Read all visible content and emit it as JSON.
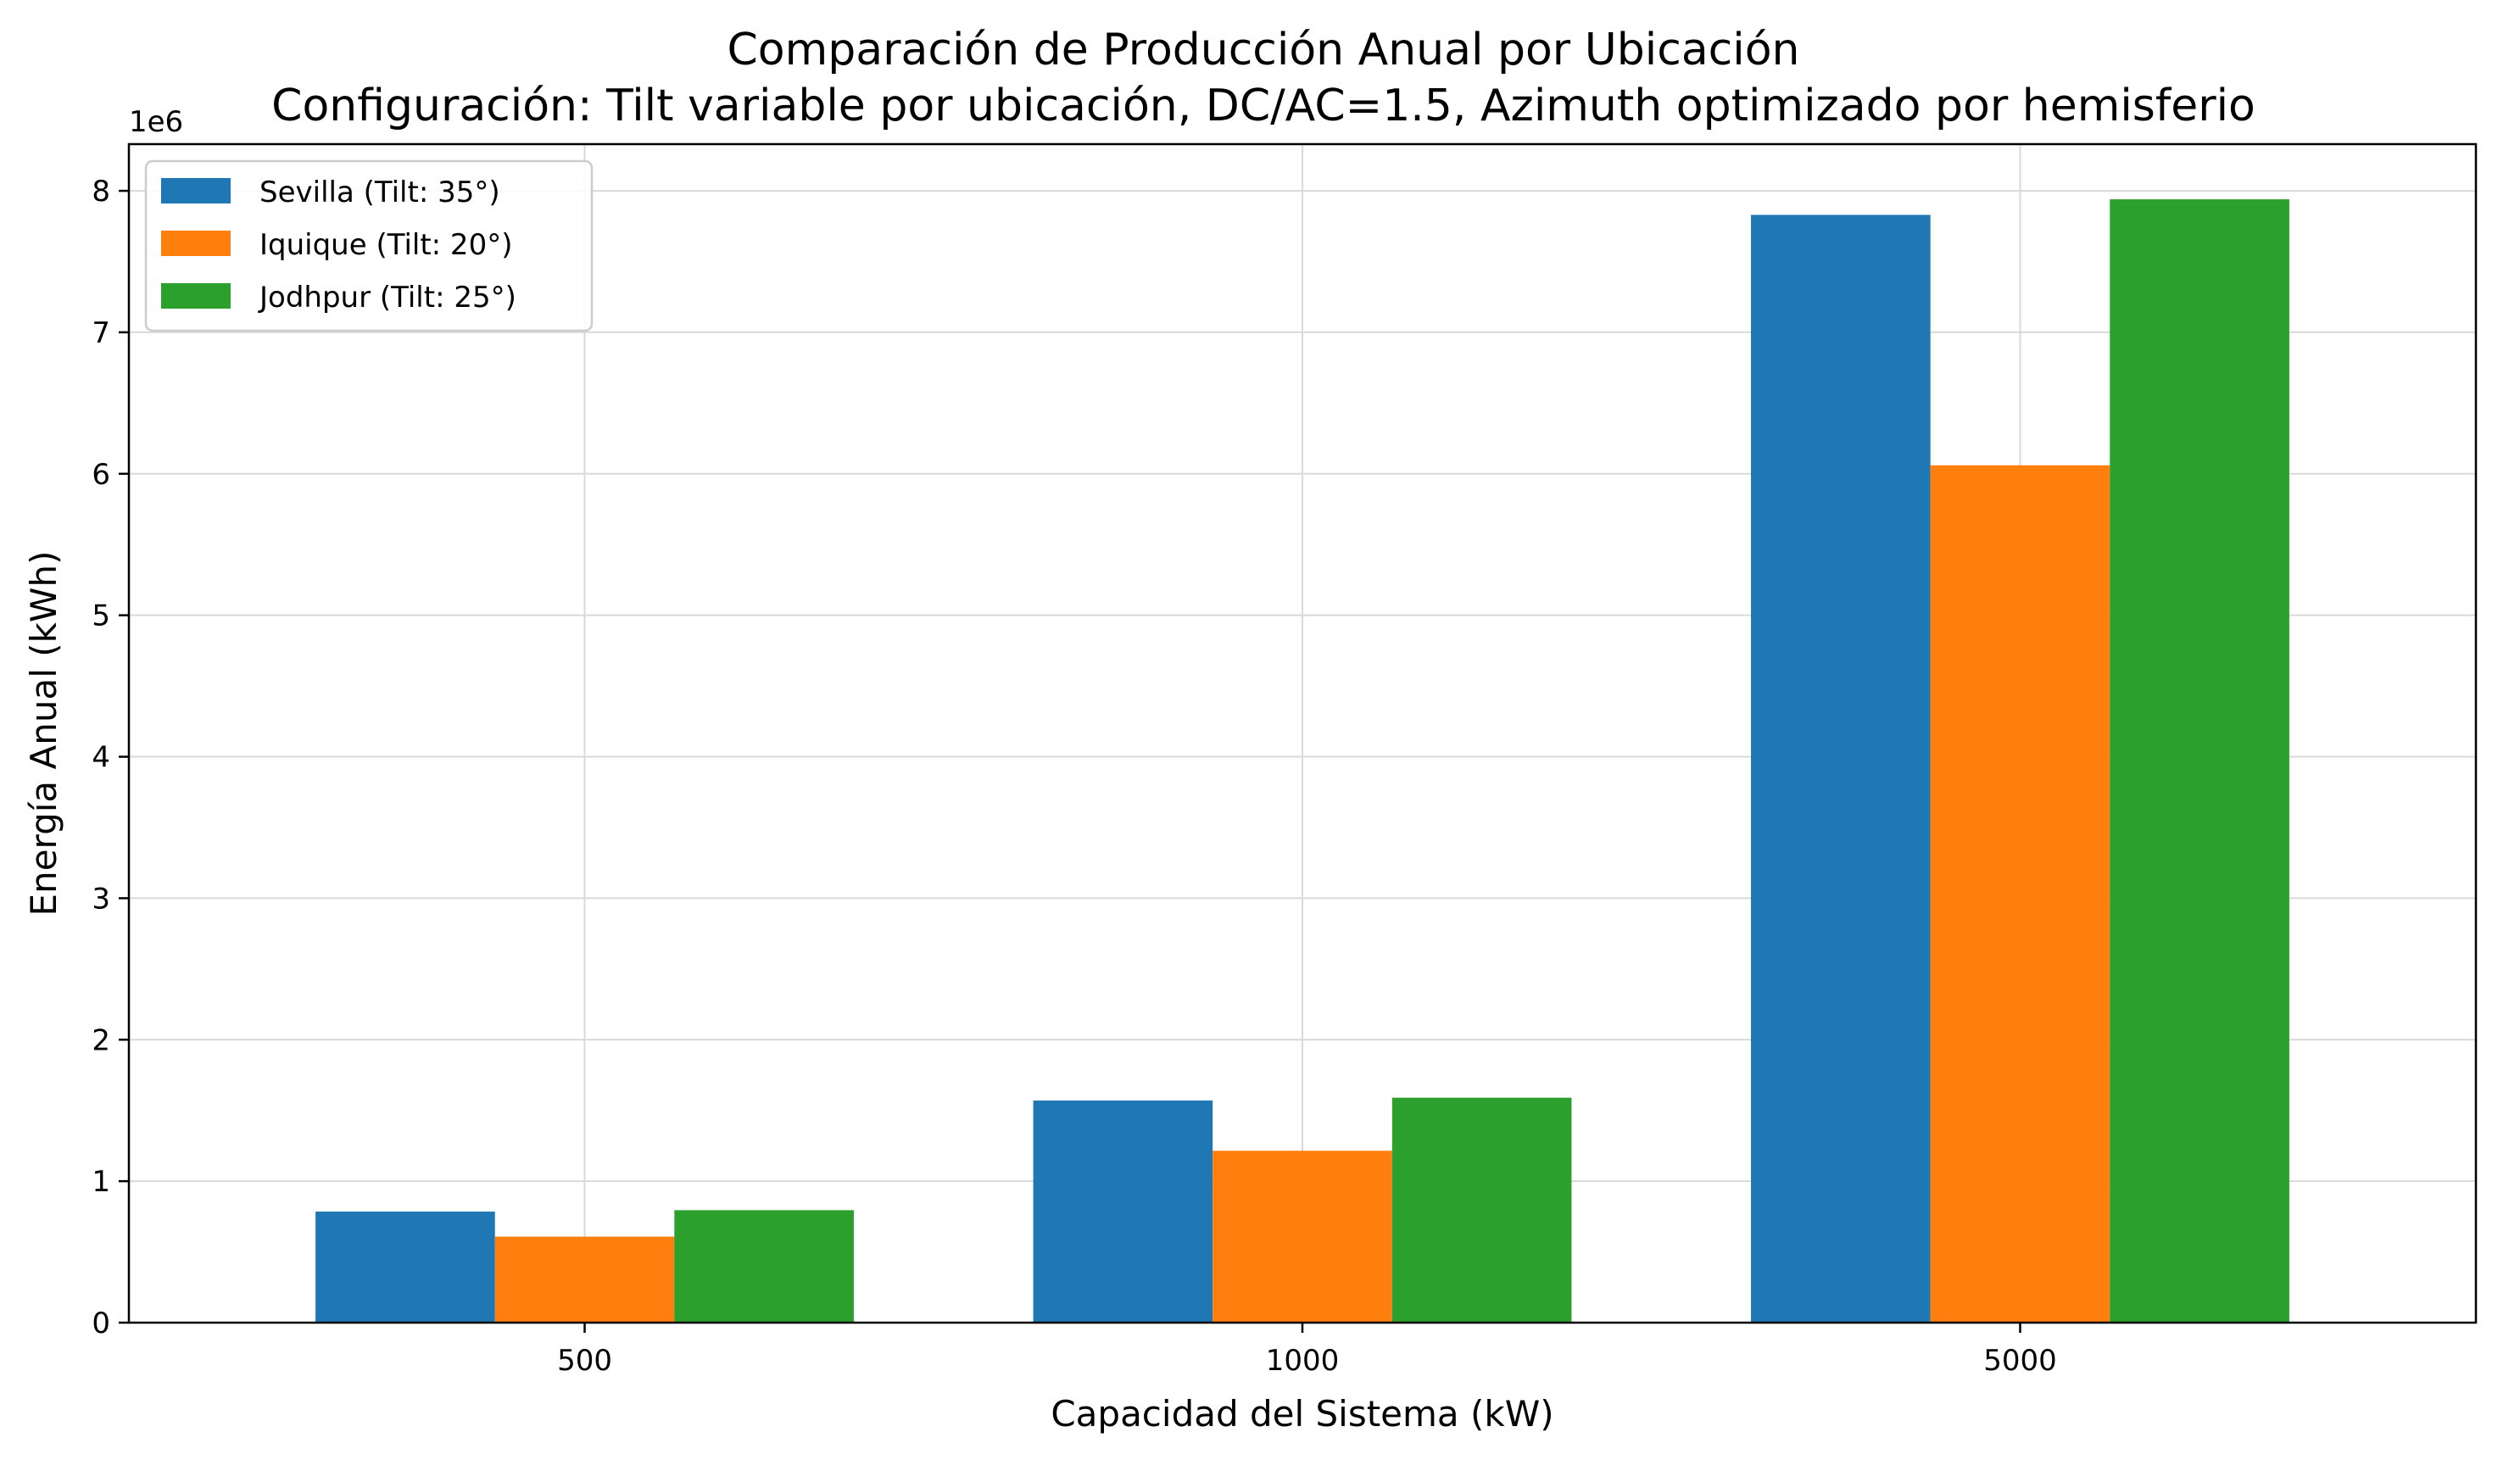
{
  "chart_data": {
    "type": "bar",
    "title": "Comparación de Producción Anual por Ubicación",
    "subtitle": "Configuración: Tilt variable por ubicación, DC/AC=1.5, Azimuth optimizado por hemisferio",
    "xlabel": "Capacidad del Sistema (kW)",
    "ylabel": "Energía Anual (kWh)",
    "y_offset_label": "1e6",
    "y_multiplier": 1000000,
    "categories": [
      "500",
      "1000",
      "5000"
    ],
    "series": [
      {
        "name": "Sevilla (Tilt: 35°)",
        "color": "#1f77b4",
        "values": [
          785000,
          1570000,
          7830000
        ]
      },
      {
        "name": "Iquique (Tilt: 20°)",
        "color": "#ff7f0e",
        "values": [
          608000,
          1215000,
          6060000
        ]
      },
      {
        "name": "Jodhpur (Tilt: 25°)",
        "color": "#2ca02c",
        "values": [
          795000,
          1590000,
          7940000
        ]
      }
    ],
    "yticks": [
      "0",
      "1",
      "2",
      "3",
      "4",
      "5",
      "6",
      "7",
      "8"
    ],
    "ylim": [
      0,
      8330000
    ],
    "grid": true,
    "legend_position": "upper-left"
  }
}
